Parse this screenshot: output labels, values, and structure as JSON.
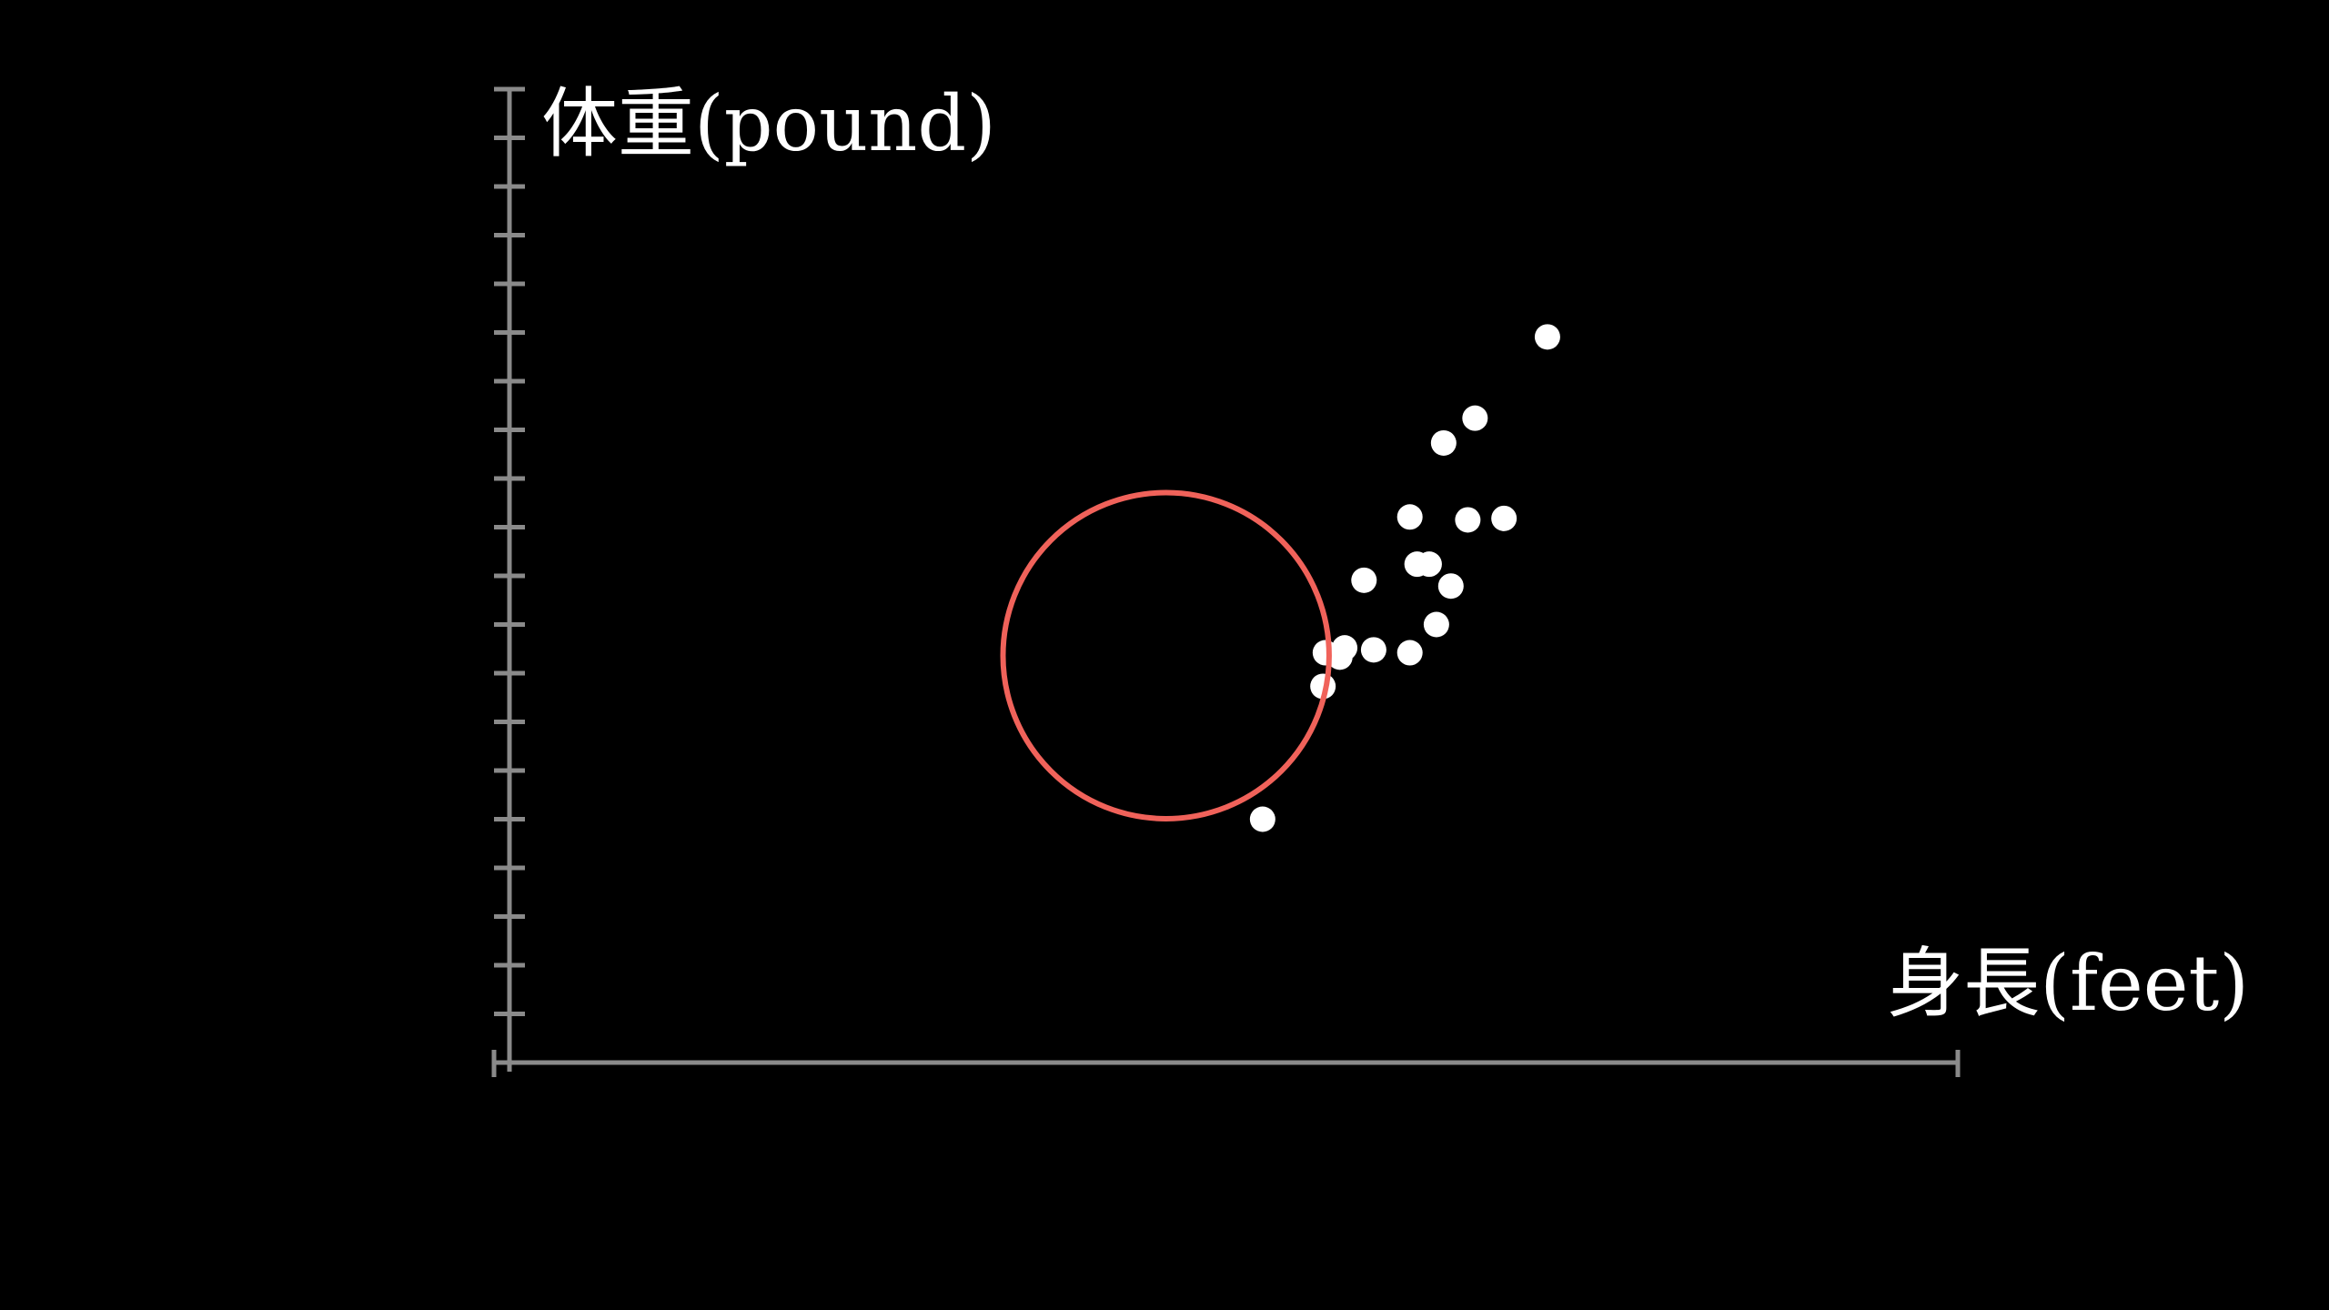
{
  "chart_data": {
    "type": "scatter",
    "xlabel": "身長(feet)",
    "ylabel": "体重(pound)",
    "xlim": [
      0,
      6
    ],
    "ylim": [
      0,
      200
    ],
    "grid": false,
    "points": [
      {
        "x": 3.12,
        "y": 50.0
      },
      {
        "x": 3.37,
        "y": 77.3
      },
      {
        "x": 3.38,
        "y": 84.2
      },
      {
        "x": 3.44,
        "y": 83.3
      },
      {
        "x": 3.46,
        "y": 85.2
      },
      {
        "x": 3.54,
        "y": 99.1
      },
      {
        "x": 3.58,
        "y": 84.8
      },
      {
        "x": 3.73,
        "y": 84.2
      },
      {
        "x": 3.73,
        "y": 112.1
      },
      {
        "x": 3.76,
        "y": 102.4
      },
      {
        "x": 3.81,
        "y": 102.4
      },
      {
        "x": 3.84,
        "y": 90.0
      },
      {
        "x": 3.9,
        "y": 97.9
      },
      {
        "x": 3.87,
        "y": 127.3
      },
      {
        "x": 3.97,
        "y": 111.5
      },
      {
        "x": 4.0,
        "y": 132.4
      },
      {
        "x": 4.12,
        "y": 111.8
      },
      {
        "x": 4.3,
        "y": 149.1
      }
    ],
    "highlight": {
      "cx": 2.72,
      "cy": 83.6,
      "radius_y": 33.5,
      "color": "#f0625a"
    },
    "colors": {
      "axis": "#8a8a8a",
      "point": "#ffffff",
      "background": "#000000"
    }
  }
}
